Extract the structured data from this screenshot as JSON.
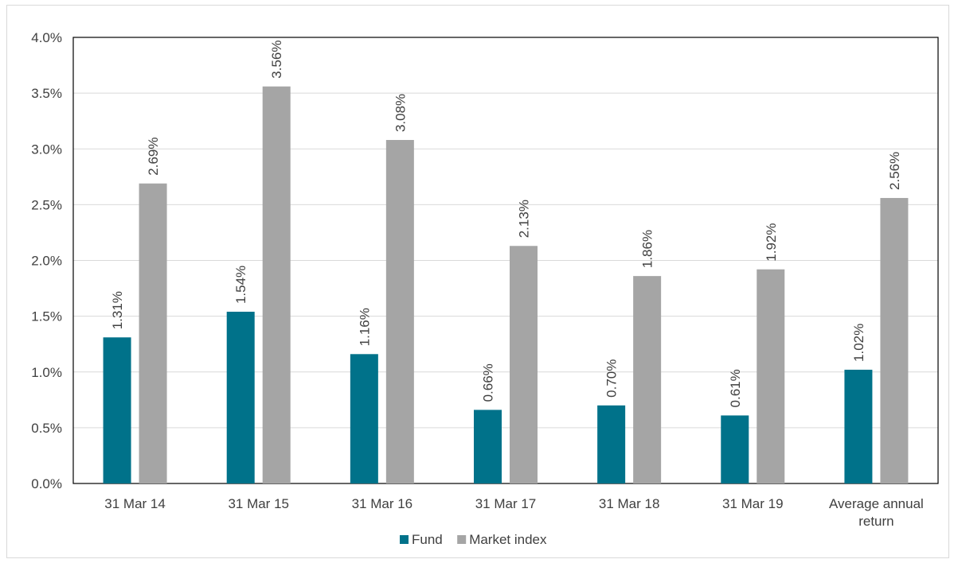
{
  "chart_data": {
    "type": "bar",
    "categories": [
      [
        "31 Mar 14"
      ],
      [
        "31 Mar 15"
      ],
      [
        "31 Mar 16"
      ],
      [
        "31 Mar 17"
      ],
      [
        "31 Mar 18"
      ],
      [
        "31 Mar 19"
      ],
      [
        "Average annual",
        "return"
      ]
    ],
    "series": [
      {
        "name": "Fund",
        "color": "#00728a",
        "values": [
          1.31,
          1.54,
          1.16,
          0.66,
          0.7,
          0.61,
          1.02
        ],
        "labels": [
          "1.31%",
          "1.54%",
          "1.16%",
          "0.66%",
          "0.70%",
          "0.61%",
          "1.02%"
        ]
      },
      {
        "name": "Market index",
        "color": "#a5a5a5",
        "values": [
          2.69,
          3.56,
          3.08,
          2.13,
          1.86,
          1.92,
          2.56
        ],
        "labels": [
          "2.69%",
          "3.56%",
          "3.08%",
          "2.13%",
          "1.86%",
          "1.92%",
          "2.56%"
        ]
      }
    ],
    "yticks": [
      "0.0%",
      "0.5%",
      "1.0%",
      "1.5%",
      "2.0%",
      "2.5%",
      "3.0%",
      "3.5%",
      "4.0%"
    ],
    "ylim": [
      0,
      4
    ],
    "grid": true,
    "legend": "bottom"
  }
}
